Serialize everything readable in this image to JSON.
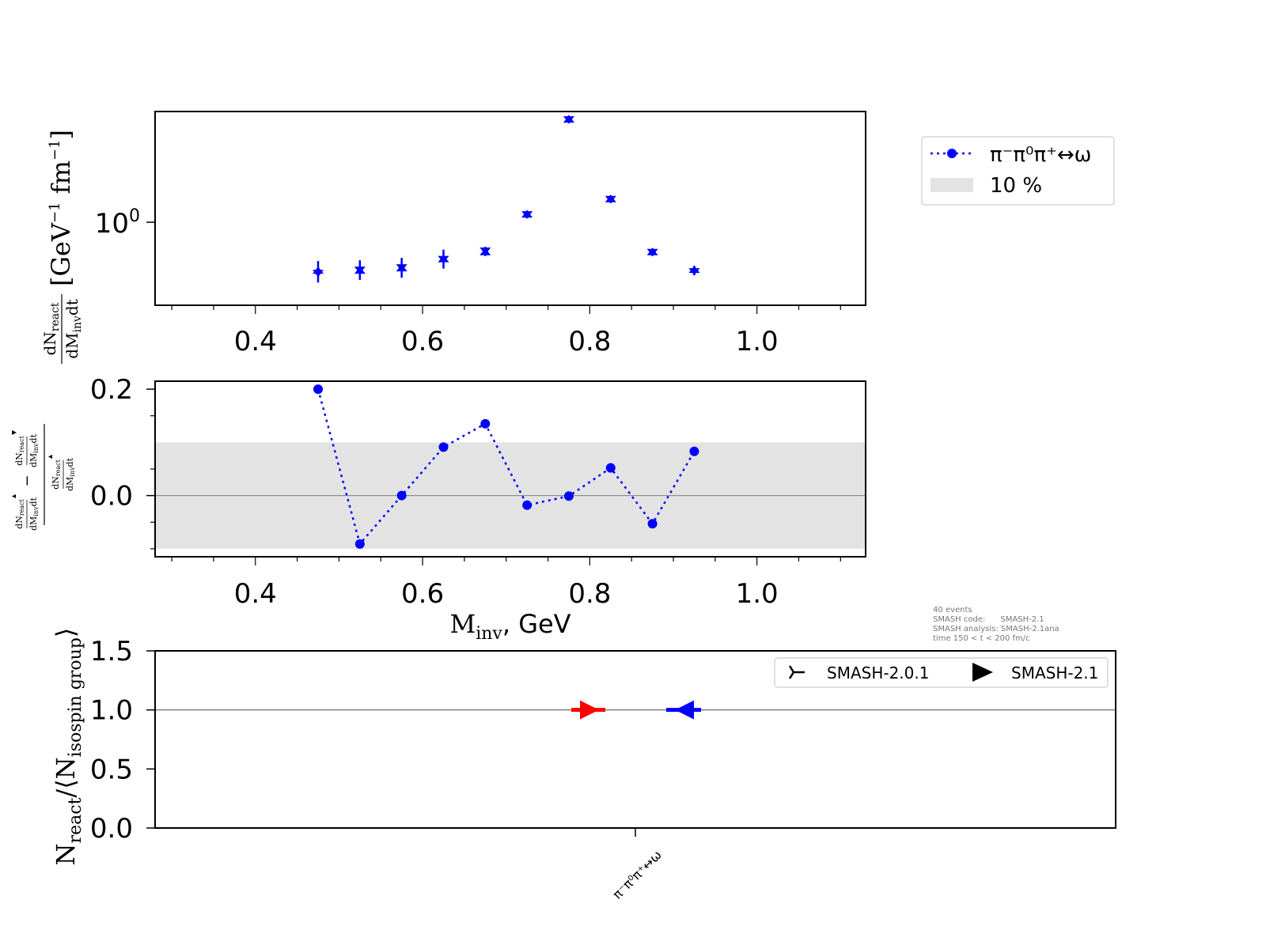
{
  "colors": {
    "series": "#0000ff",
    "band": "#e3e3e3",
    "old_version": "#ff0000",
    "new_version": "#0000ff"
  },
  "chart_data": [
    {
      "type": "scatter",
      "panel": "invariant-mass-spectrum",
      "ylabel": {
        "num": "dN",
        "num_sub": "react",
        "den": "dM",
        "den_sub": "inv",
        "den_tail": "dt",
        "units": "[GeV",
        "units_mid": " fm",
        "exp": "−1",
        "close": "]"
      },
      "yscale": "log",
      "ytick_label": {
        "base": "10",
        "exp": "0"
      },
      "xlim": [
        0.28,
        1.13
      ],
      "ylim": [
        0.5,
        2.9
      ],
      "xticks": [
        "0.4",
        "0.6",
        "0.8",
        "1.0"
      ],
      "x": [
        0.475,
        0.525,
        0.575,
        0.625,
        0.675,
        0.725,
        0.775,
        0.825,
        0.875,
        0.925
      ],
      "series": [
        {
          "name": "π⁻π⁰π⁺↔ω",
          "marker": "down-triangle",
          "values": [
            0.67,
            0.69,
            0.705,
            0.76,
            0.82,
            1.14,
            2.7,
            1.31,
            0.81,
            0.68
          ]
        },
        {
          "marker": "up-triangle",
          "values": [
            0.685,
            0.685,
            0.7,
            0.76,
            0.81,
            1.14,
            2.7,
            1.31,
            0.81,
            0.69
          ]
        }
      ]
    },
    {
      "type": "line",
      "panel": "relative-difference",
      "xlim": [
        0.28,
        1.13
      ],
      "ylim": [
        -0.115,
        0.215
      ],
      "xticks": [
        "0.4",
        "0.6",
        "0.8",
        "1.0"
      ],
      "yticks": [
        "0.2",
        "0.0"
      ],
      "xlabel": {
        "main": "M",
        "sub": "inv",
        "tail": ", GeV"
      },
      "band": [
        -0.1,
        0.1
      ],
      "x": [
        0.475,
        0.525,
        0.575,
        0.625,
        0.675,
        0.725,
        0.775,
        0.825,
        0.875,
        0.925
      ],
      "values": [
        0.2,
        -0.091,
        0.0,
        0.091,
        0.135,
        -0.018,
        -0.001,
        0.052,
        -0.053,
        0.083
      ],
      "legend": [
        {
          "label": "π⁻π⁰π⁺↔ω"
        },
        {
          "label": "10 %"
        }
      ]
    },
    {
      "type": "scatter",
      "panel": "version-comparison",
      "categories": [
        "π⁻π⁰π⁺↔ω"
      ],
      "ylim": [
        0.0,
        1.5
      ],
      "yticks": [
        "1.5",
        "1.0",
        "0.5",
        "0.0"
      ],
      "ylabel": {
        "n": "N",
        "n_sub": "react",
        "mid": "/⟨N",
        "g_sub": "isospin group",
        "close": "⟩"
      },
      "series": [
        {
          "name": "SMASH-2.0.1",
          "marker": "tri-right",
          "values": [
            1.0
          ]
        },
        {
          "name": "SMASH-2.1",
          "marker": "triangle-right",
          "values": [
            1.0
          ]
        }
      ]
    }
  ],
  "info": [
    "40 events",
    "SMASH code:      SMASH-2.1",
    "SMASH analysis: SMASH-2.1ana",
    "time 150 < t < 200 fm/c"
  ]
}
